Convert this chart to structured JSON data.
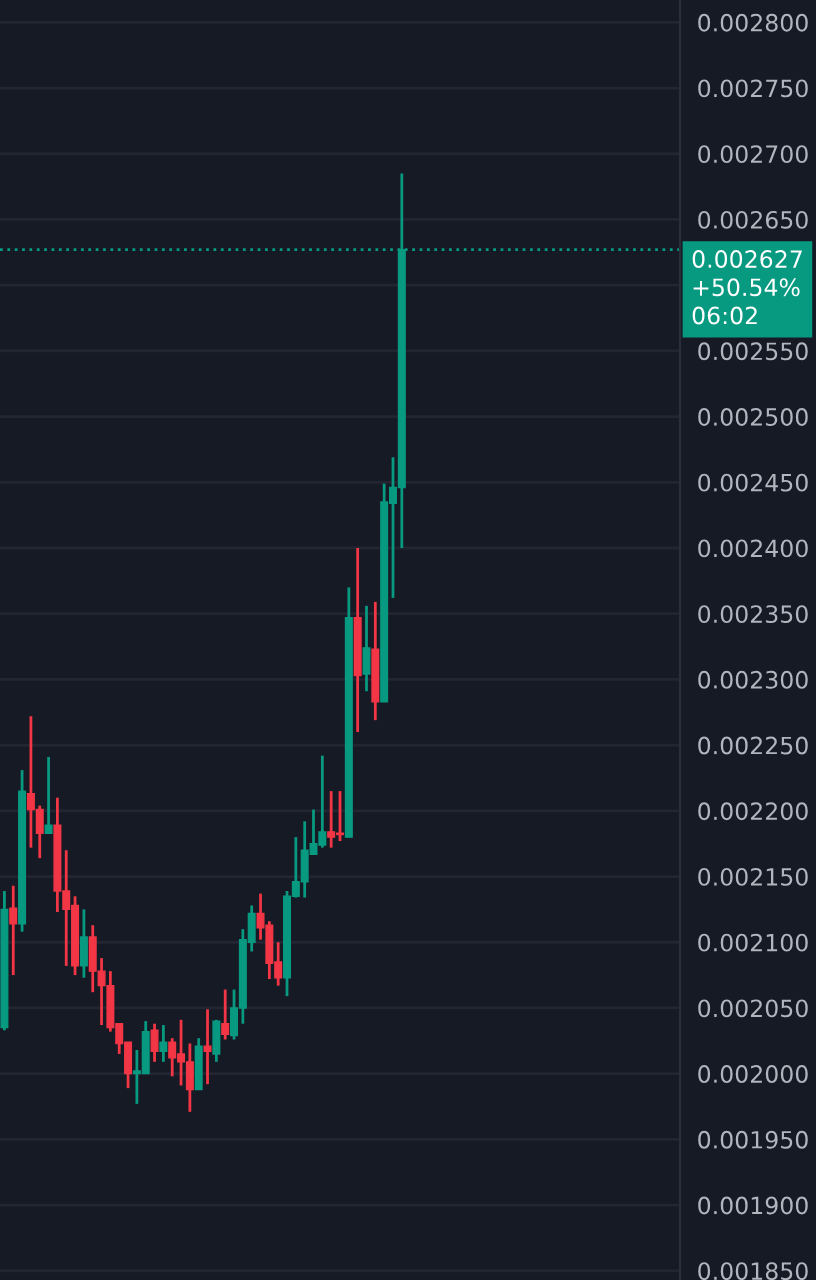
{
  "chart_data": {
    "type": "candlestick",
    "categories": [
      null,
      null,
      null,
      null,
      null,
      null,
      null,
      null,
      null,
      null,
      null,
      null,
      null,
      null,
      null,
      null,
      null,
      null,
      null,
      null,
      null,
      null,
      null,
      null,
      null,
      null,
      null,
      null,
      null,
      null,
      null,
      null,
      null,
      null,
      null,
      null,
      null,
      null,
      null,
      null,
      null,
      null,
      null,
      null,
      null,
      null,
      null,
      null,
      null,
      null,
      null,
      null,
      null,
      null,
      null,
      null,
      null,
      null,
      null,
      null,
      null,
      null,
      null,
      null,
      null,
      null,
      null,
      null,
      null,
      null,
      null,
      null,
      null,
      null,
      null,
      null,
      null
    ],
    "ohlc": [
      [
        0.002035,
        0.002139,
        0.002033,
        0.002125
      ],
      [
        0.002126,
        0.002143,
        0.002075,
        0.002114
      ],
      [
        0.002114,
        0.002231,
        0.002108,
        0.002215
      ],
      [
        0.002213,
        0.002272,
        0.002172,
        0.002201
      ],
      [
        0.002201,
        0.002204,
        0.002164,
        0.002183
      ],
      [
        0.002183,
        0.002241,
        0.002183,
        0.002189
      ],
      [
        0.002189,
        0.00221,
        0.002123,
        0.002139
      ],
      [
        0.002139,
        0.00217,
        0.002082,
        0.002125
      ],
      [
        0.002128,
        0.002135,
        0.002075,
        0.002082
      ],
      [
        0.002082,
        0.002125,
        0.002073,
        0.002104
      ],
      [
        0.002104,
        0.002113,
        0.002062,
        0.002078
      ],
      [
        0.002078,
        0.002088,
        0.002037,
        0.002067
      ],
      [
        0.002067,
        0.002078,
        0.002032,
        0.002035
      ],
      [
        0.002038,
        0.002038,
        0.002015,
        0.002023
      ],
      [
        0.002024,
        0.002024,
        0.001989,
        0.002
      ],
      [
        0.002,
        0.002018,
        0.001977,
        0.002002
      ],
      [
        0.002,
        0.00204,
        0.002,
        0.002032
      ],
      [
        0.002033,
        0.002038,
        0.002009,
        0.002017
      ],
      [
        0.002017,
        0.002037,
        0.002009,
        0.002024
      ],
      [
        0.002024,
        0.002027,
        0.001998,
        0.002012
      ],
      [
        0.002015,
        0.002041,
        0.001991,
        0.002009
      ],
      [
        0.002009,
        0.002023,
        0.001971,
        0.001988
      ],
      [
        0.001988,
        0.002027,
        0.001988,
        0.002021
      ],
      [
        0.002021,
        0.002049,
        0.001992,
        0.002017
      ],
      [
        0.002015,
        0.002041,
        0.002009,
        0.00204
      ],
      [
        0.002038,
        0.002064,
        0.002026,
        0.00203
      ],
      [
        0.002029,
        0.002064,
        0.002026,
        0.00205
      ],
      [
        0.00205,
        0.00211,
        0.002038,
        0.002102
      ],
      [
        0.0021,
        0.002128,
        0.002093,
        0.002122
      ],
      [
        0.002122,
        0.002137,
        0.002102,
        0.002111
      ],
      [
        0.002113,
        0.002116,
        0.002072,
        0.002084
      ],
      [
        0.002085,
        0.0021,
        0.002067,
        0.002073
      ],
      [
        0.002073,
        0.002139,
        0.002059,
        0.002135
      ],
      [
        0.002135,
        0.00218,
        0.002134,
        0.002146
      ],
      [
        0.002146,
        0.002192,
        0.002134,
        0.00217
      ],
      [
        0.002167,
        0.002201,
        0.002167,
        0.002175
      ],
      [
        0.002174,
        0.002242,
        0.002172,
        0.002184
      ],
      [
        0.002184,
        0.002215,
        0.002172,
        0.00218
      ],
      [
        0.002183,
        0.002215,
        0.002177,
        0.002182
      ],
      [
        0.00218,
        0.00237,
        0.00218,
        0.002347
      ],
      [
        0.002347,
        0.0024,
        0.00226,
        0.002303
      ],
      [
        0.002304,
        0.002356,
        0.002291,
        0.002324
      ],
      [
        0.002323,
        0.002359,
        0.002269,
        0.002283
      ],
      [
        0.002283,
        0.002449,
        0.002283,
        0.002435
      ],
      [
        0.002434,
        0.002469,
        0.002362,
        0.002446
      ],
      [
        0.002446,
        0.002685,
        0.0024,
        0.002627
      ],
      null,
      null,
      null,
      null,
      null,
      null,
      null,
      null,
      null,
      null,
      null,
      null,
      null,
      null,
      null,
      null,
      null,
      null,
      null,
      null,
      null,
      null,
      null,
      null,
      null,
      null,
      null,
      null,
      null,
      null,
      null
    ],
    "colors": [
      "#089981",
      "#f23645",
      "#089981",
      "#f23645",
      "#f23645",
      "#089981",
      "#f23645",
      "#f23645",
      "#f23645",
      "#089981",
      "#f23645",
      "#f23645",
      "#f23645",
      "#f23645",
      "#f23645",
      "#089981",
      "#089981",
      "#f23645",
      "#089981",
      "#f23645",
      "#f23645",
      "#f23645",
      "#089981",
      "#f23645",
      "#089981",
      "#f23645",
      "#089981",
      "#089981",
      "#089981",
      "#f23645",
      "#f23645",
      "#f23645",
      "#089981",
      "#089981",
      "#089981",
      "#089981",
      "#089981",
      "#f23645",
      "#f23645",
      "#089981",
      "#f23645",
      "#089981",
      "#f23645",
      "#089981",
      "#089981",
      "#089981",
      null,
      null,
      null,
      null,
      null,
      null,
      null,
      null,
      null,
      null,
      null,
      null,
      null,
      null,
      null,
      null,
      null,
      null,
      null,
      null,
      null,
      null,
      null,
      null,
      null,
      null,
      null,
      null,
      null,
      null,
      null
    ],
    "ylim": [
      0.001843,
      0.002817
    ],
    "yticks": [
      {
        "value": 0.00185,
        "label": "0.001850"
      },
      {
        "value": 0.0019,
        "label": "0.001900"
      },
      {
        "value": 0.00195,
        "label": "0.001950"
      },
      {
        "value": 0.002,
        "label": "0.002000"
      },
      {
        "value": 0.00205,
        "label": "0.002050"
      },
      {
        "value": 0.0021,
        "label": "0.002100"
      },
      {
        "value": 0.00215,
        "label": "0.002150"
      },
      {
        "value": 0.0022,
        "label": "0.002200"
      },
      {
        "value": 0.00225,
        "label": "0.002250"
      },
      {
        "value": 0.0023,
        "label": "0.002300"
      },
      {
        "value": 0.00235,
        "label": "0.002350"
      },
      {
        "value": 0.0024,
        "label": "0.002400"
      },
      {
        "value": 0.00245,
        "label": "0.002450"
      },
      {
        "value": 0.0025,
        "label": "0.002500"
      },
      {
        "value": 0.00255,
        "label": "0.002550"
      },
      {
        "value": 0.0026,
        "label": null
      },
      {
        "value": 0.00265,
        "label": "0.002650"
      },
      {
        "value": 0.0027,
        "label": "0.002700"
      },
      {
        "value": 0.00275,
        "label": "0.002750"
      },
      {
        "value": 0.0028,
        "label": "0.002800"
      }
    ],
    "ref_lines": [
      {
        "axis": "y",
        "value": 0.002627,
        "label": "0.002627\n+50.54%\n06:02",
        "color": "#089981",
        "line_style": "dotted"
      }
    ],
    "grid": "y",
    "tick_labels": "y"
  }
}
